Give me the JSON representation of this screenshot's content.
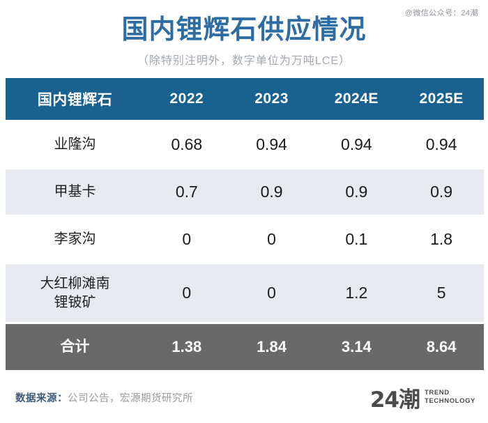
{
  "watermark": "@微信公众号：24潮",
  "header": {
    "title": "国内锂辉石供应情况",
    "subtitle": "（除特别注明外，数字单位为万吨LCE）"
  },
  "chart_data": {
    "type": "table",
    "title": "国内锂辉石供应情况",
    "unit_note": "除特别注明外，数字单位为万吨LCE",
    "columns": [
      "国内锂辉石",
      "2022",
      "2023",
      "2024E",
      "2025E"
    ],
    "rows": [
      {
        "label": "业隆沟",
        "values": [
          "0.68",
          "0.94",
          "0.94",
          "0.94"
        ]
      },
      {
        "label": "甲基卡",
        "values": [
          "0.7",
          "0.9",
          "0.9",
          "0.9"
        ]
      },
      {
        "label": "李家沟",
        "values": [
          "0",
          "0",
          "0.1",
          "1.8"
        ]
      },
      {
        "label": "大红柳滩南\n锂铍矿",
        "values": [
          "0",
          "0",
          "1.2",
          "5"
        ]
      }
    ],
    "total": {
      "label": "合计",
      "values": [
        "1.38",
        "1.84",
        "3.14",
        "8.64"
      ]
    }
  },
  "footer": {
    "source_label": "数据来源：",
    "source_text": "公司公告，宏源期货研究所",
    "logo_text": "24潮",
    "logo_sub_line1": "TREND",
    "logo_sub_line2": "TECHNOLOGY"
  },
  "colors": {
    "title_blue": "#2e6da4",
    "header_bg": "#19618f",
    "row_alt_bg": "#e7eaef",
    "total_row_bg": "#696969",
    "subtitle_gray": "#a3a8ae",
    "source_label_blue": "#3e5c79"
  }
}
